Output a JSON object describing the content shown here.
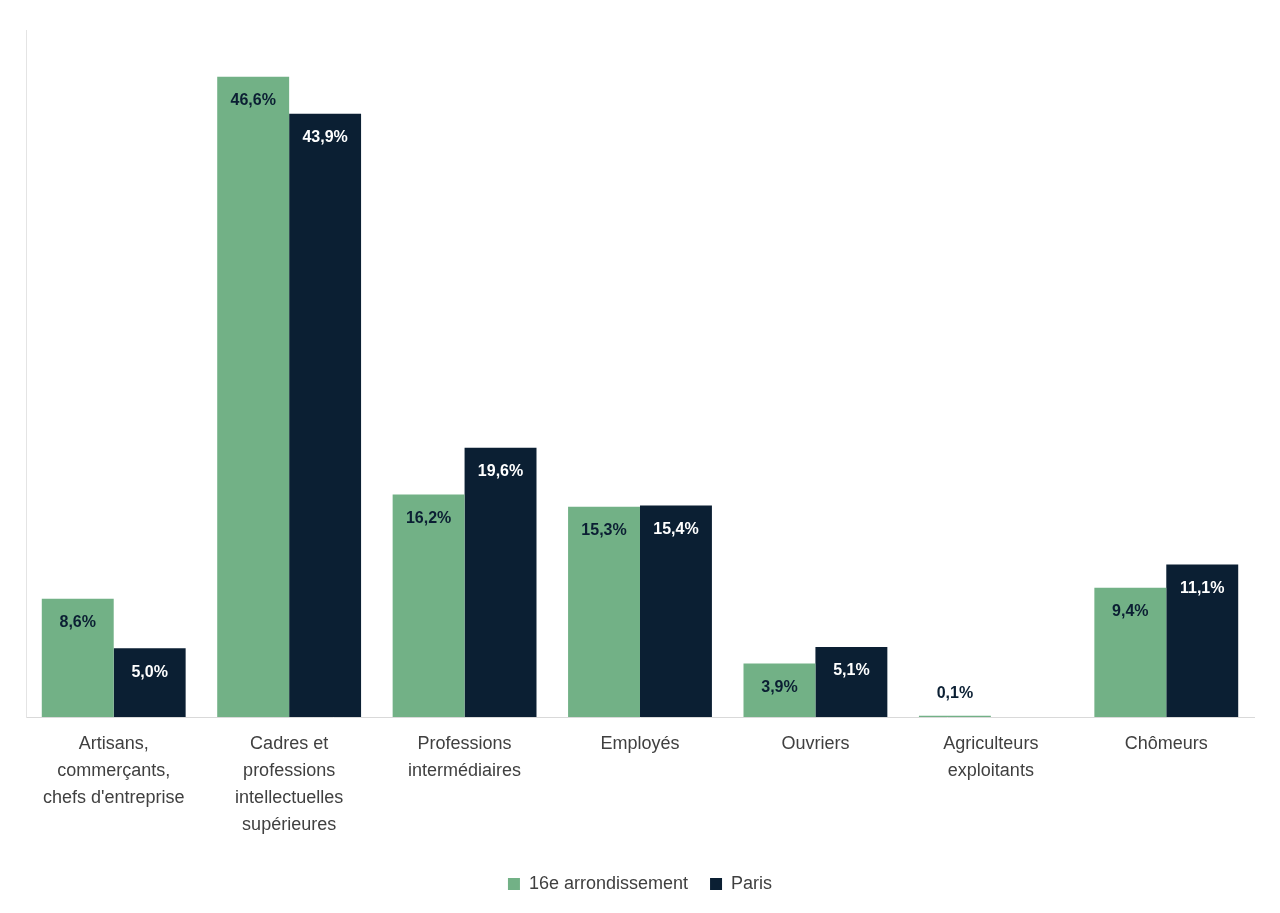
{
  "chart_data": {
    "type": "bar",
    "categories": [
      [
        "Artisans,",
        "commerçants,",
        "chefs d'entreprise"
      ],
      [
        "Cadres et",
        "professions",
        "intellectuelles",
        "supérieures"
      ],
      [
        "Professions",
        "intermédiaires"
      ],
      [
        "Employés"
      ],
      [
        "Ouvriers"
      ],
      [
        "Agriculteurs",
        "exploitants"
      ],
      [
        "Chômeurs"
      ]
    ],
    "series": [
      {
        "name": "16e arrondissement",
        "color": "#72b186",
        "values": [
          8.6,
          46.6,
          16.2,
          15.3,
          3.9,
          0.1,
          9.4
        ],
        "value_labels": [
          "8,6%",
          "46,6%",
          "16,2%",
          "15,3%",
          "3,9%",
          "0,1%",
          "9,4%"
        ]
      },
      {
        "name": "Paris",
        "color": "#0b1f33",
        "values": [
          5.0,
          43.9,
          19.6,
          15.4,
          5.1,
          null,
          11.1
        ],
        "value_labels": [
          "5,0%",
          "43,9%",
          "19,6%",
          "15,4%",
          "5,1%",
          null,
          "11,1%"
        ]
      }
    ],
    "ylim": [
      0,
      50
    ],
    "grid": false,
    "legend": "bottom",
    "data_labels": true,
    "tick_labels": "x"
  }
}
